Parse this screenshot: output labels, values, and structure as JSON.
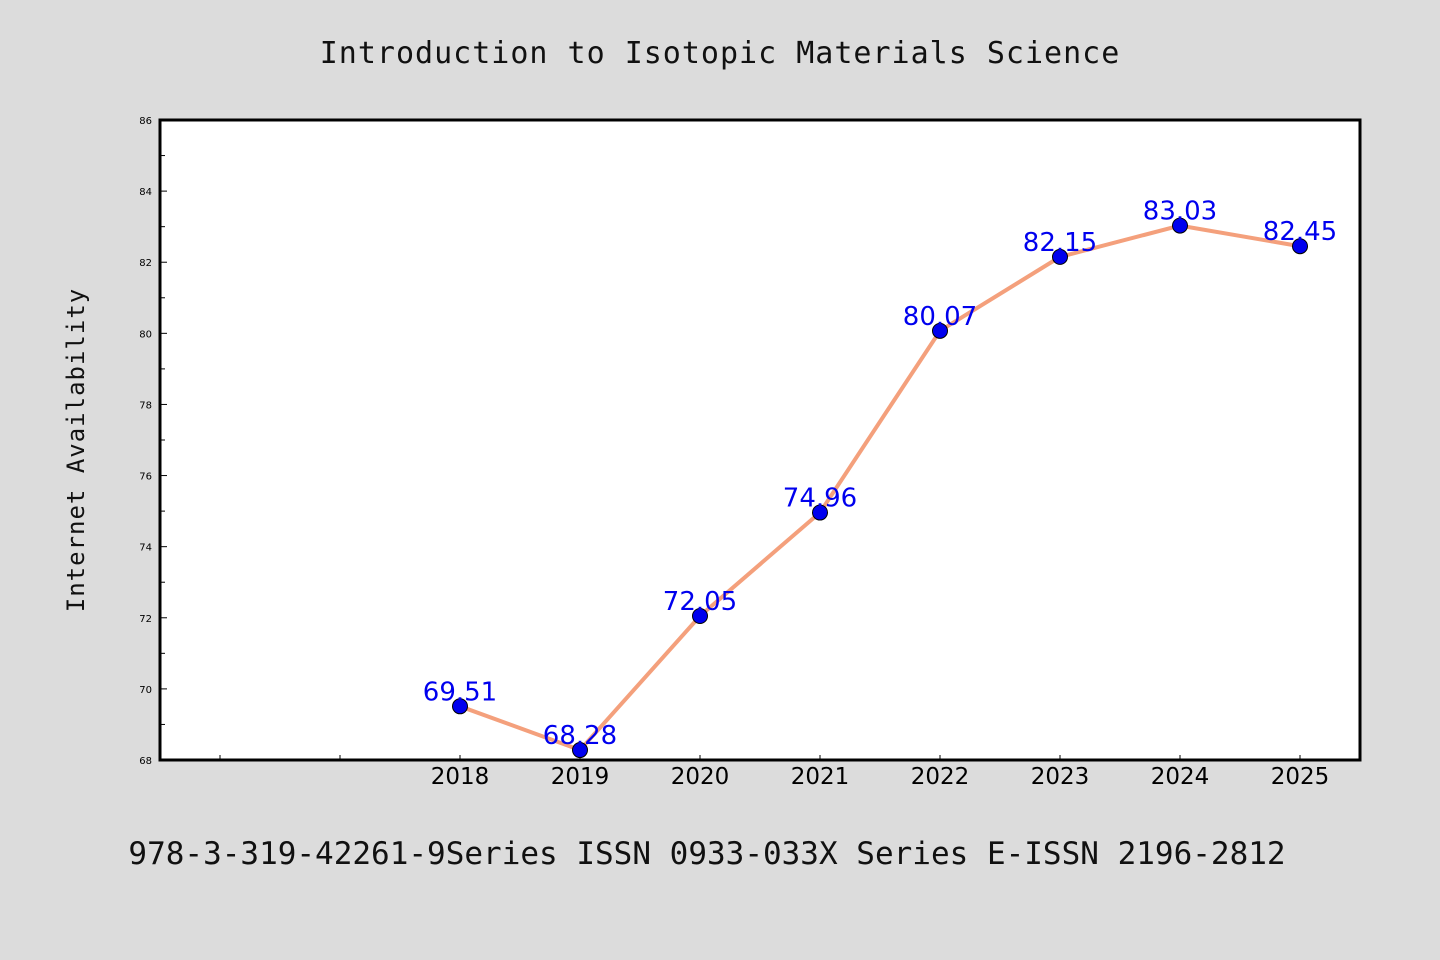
{
  "chart_data": {
    "type": "line",
    "title": "Introduction to Isotopic Materials Science",
    "xlabel": "",
    "ylabel": "Internet Availability",
    "x": [
      "2018",
      "2019",
      "2020",
      "2021",
      "2022",
      "2023",
      "2024",
      "2025"
    ],
    "series": [
      {
        "values": [
          69.51,
          68.28,
          72.05,
          74.96,
          80.07,
          82.15,
          83.03,
          82.45
        ]
      }
    ],
    "data_labels": [
      "69.51",
      "68.28",
      "72.05",
      "74.96",
      "80.07",
      "82.15",
      "83.03",
      "82.45"
    ],
    "ylim": [
      68,
      86
    ],
    "yticks": [
      "68",
      "70",
      "72",
      "74",
      "76",
      "78",
      "80",
      "82",
      "84",
      "86"
    ],
    "grid": false,
    "legend": "none",
    "colors": {
      "line": "#f4a07c",
      "marker": "#0000ee",
      "label": "#0000ee",
      "background": "#dcdcdc",
      "plot_background": "#ffffff"
    }
  },
  "footer": {
    "text": "978-3-319-42261-9Series ISSN 0933-033X Series E-ISSN 2196-2812"
  }
}
